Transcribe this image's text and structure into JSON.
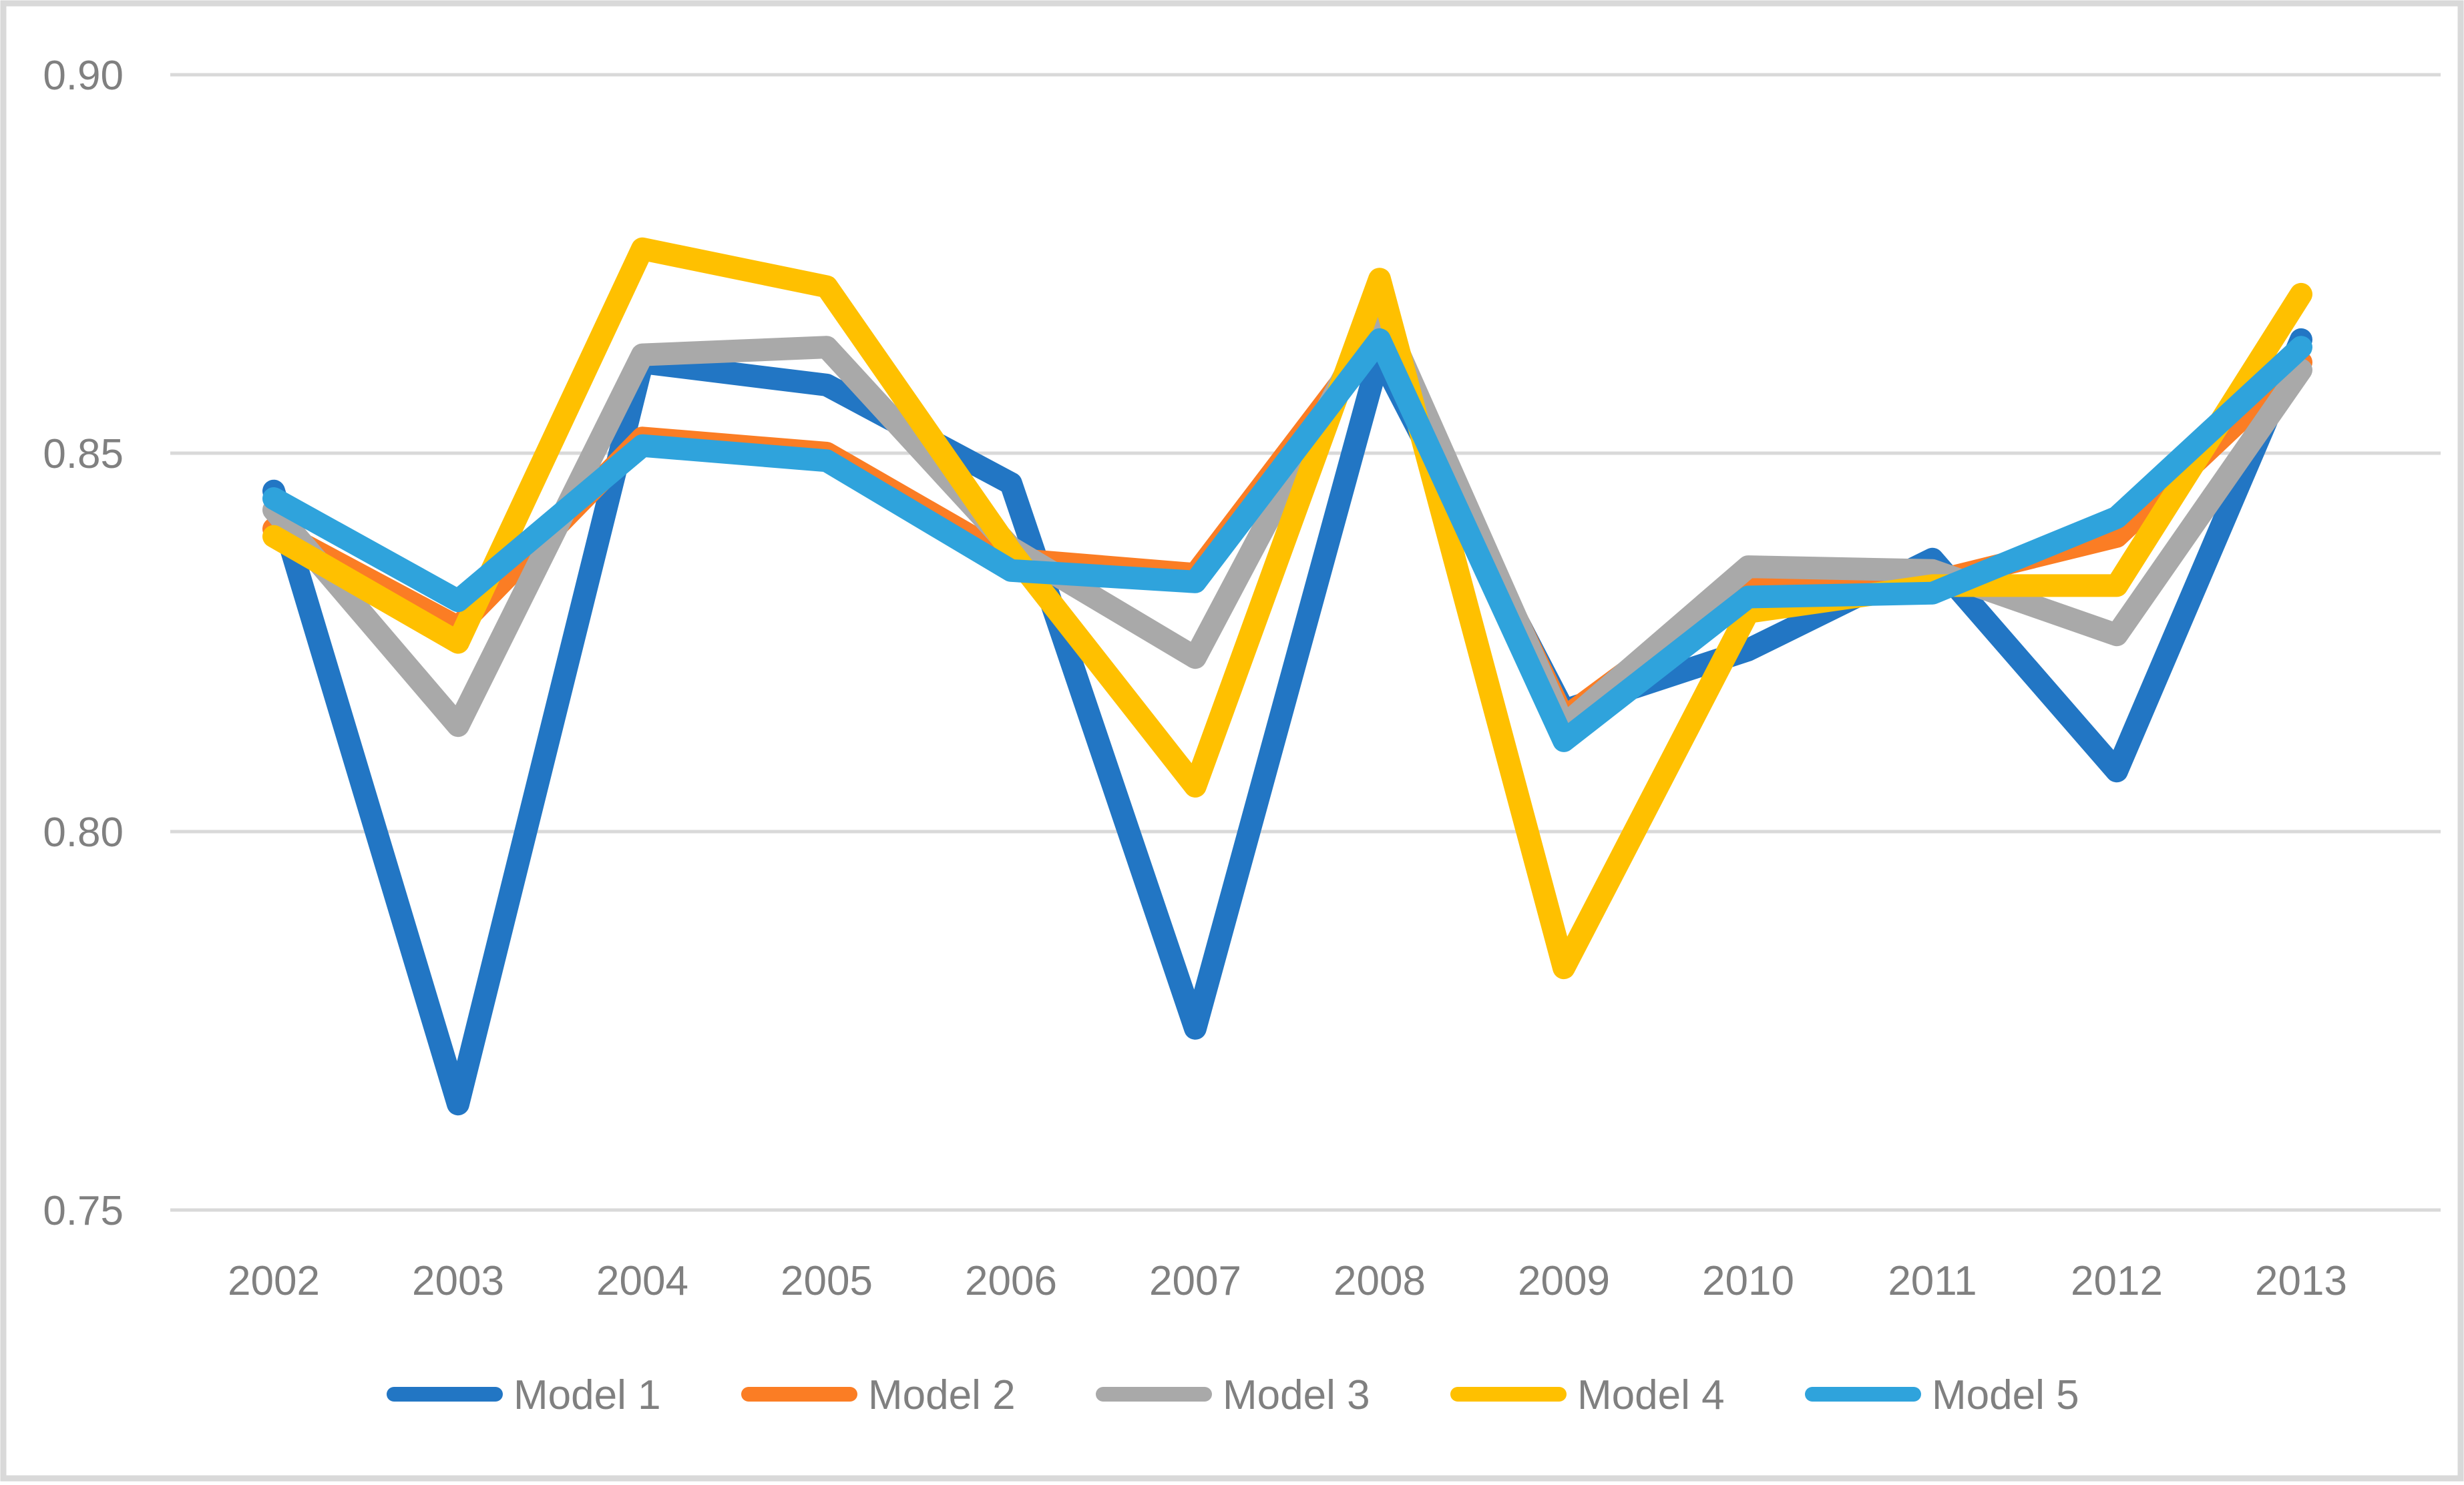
{
  "chart_data": {
    "type": "line",
    "title": "",
    "xlabel": "",
    "ylabel": "",
    "categories": [
      "2002",
      "2003",
      "2004",
      "2005",
      "2006",
      "2007",
      "2008",
      "2009",
      "2010",
      "2011",
      "2012",
      "2013"
    ],
    "series": [
      {
        "name": "Model 1",
        "color": "#2276C4",
        "values": [
          0.845,
          0.764,
          0.862,
          0.859,
          0.846,
          0.774,
          0.863,
          0.816,
          0.824,
          0.836,
          0.808,
          0.865
        ]
      },
      {
        "name": "Model 2",
        "color": "#FB7D24",
        "values": [
          0.84,
          0.827,
          0.852,
          0.85,
          0.836,
          0.834,
          0.866,
          0.815,
          0.833,
          0.833,
          0.839,
          0.862
        ]
      },
      {
        "name": "Model 3",
        "color": "#A9A9A9",
        "values": [
          0.8425,
          0.814,
          0.863,
          0.864,
          0.8375,
          0.823,
          0.869,
          0.814,
          0.835,
          0.8345,
          0.826,
          0.861
        ]
      },
      {
        "name": "Model 4",
        "color": "#FFC000",
        "values": [
          0.839,
          0.825,
          0.877,
          0.872,
          0.837,
          0.806,
          0.873,
          0.782,
          0.829,
          0.8325,
          0.8325,
          0.871
        ]
      },
      {
        "name": "Model 5",
        "color": "#2FA3DC",
        "values": [
          0.844,
          0.8305,
          0.851,
          0.849,
          0.8345,
          0.833,
          0.865,
          0.812,
          0.831,
          0.8315,
          0.8415,
          0.864
        ]
      }
    ],
    "y_ticks": [
      "0.90",
      "0.85",
      "0.80",
      "0.75"
    ],
    "y_tick_values": [
      0.9,
      0.85,
      0.8,
      0.75
    ],
    "ylim": [
      0.75,
      0.9
    ],
    "grid": true,
    "legend_position": "bottom",
    "colors": {
      "gridline": "#D9D9D9",
      "border": "#D9D9D9",
      "axis_text": "#808080",
      "background": "#FFFFFF"
    }
  }
}
